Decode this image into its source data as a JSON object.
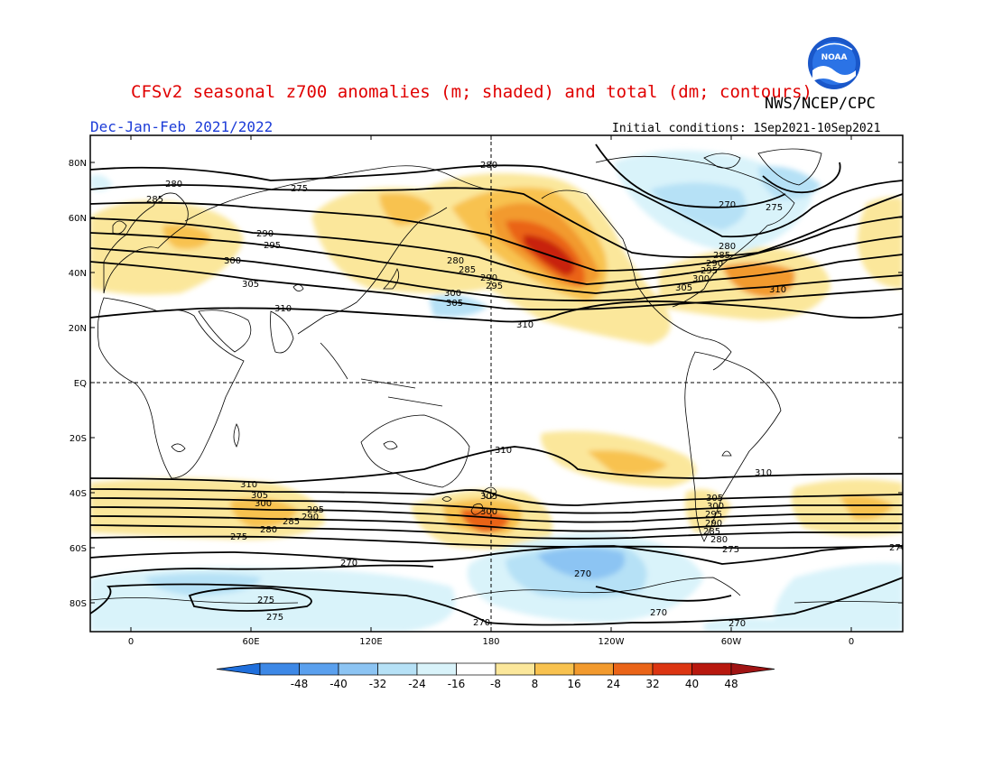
{
  "title": "CFSv2 seasonal z700 anomalies (m; shaded) and total (dm; contours)",
  "agency": "NWS/NCEP/CPC",
  "logo_text": "NOAA",
  "period": "Dec-Jan-Feb 2021/2022",
  "init": "Initial conditions: 1Sep2021-10Sep2021",
  "lat_labels": [
    "80N",
    "60N",
    "40N",
    "20N",
    "EQ",
    "20S",
    "40S",
    "60S",
    "80S"
  ],
  "lon_labels": [
    "0",
    "60E",
    "120E",
    "180",
    "120W",
    "60W",
    "0"
  ],
  "colorbar": {
    "ticks": [
      "-48",
      "-40",
      "-32",
      "-24",
      "-16",
      "-8",
      "8",
      "16",
      "24",
      "32",
      "40",
      "48"
    ],
    "colors": [
      "#1f6fdc",
      "#3d88e6",
      "#5aa0ee",
      "#8cc4f3",
      "#b6e1f6",
      "#d9f3fa",
      "#ffffff",
      "#fbe79b",
      "#f8c24f",
      "#f29a2e",
      "#ea6418",
      "#dc3512",
      "#b8180e",
      "#a01414"
    ]
  },
  "contour_labels": {
    "north": [
      "280",
      "285",
      "290",
      "295",
      "300",
      "305",
      "310",
      "275",
      "270",
      "280"
    ],
    "south": [
      "310",
      "305",
      "300",
      "295",
      "290",
      "285",
      "280",
      "275",
      "270"
    ]
  }
}
